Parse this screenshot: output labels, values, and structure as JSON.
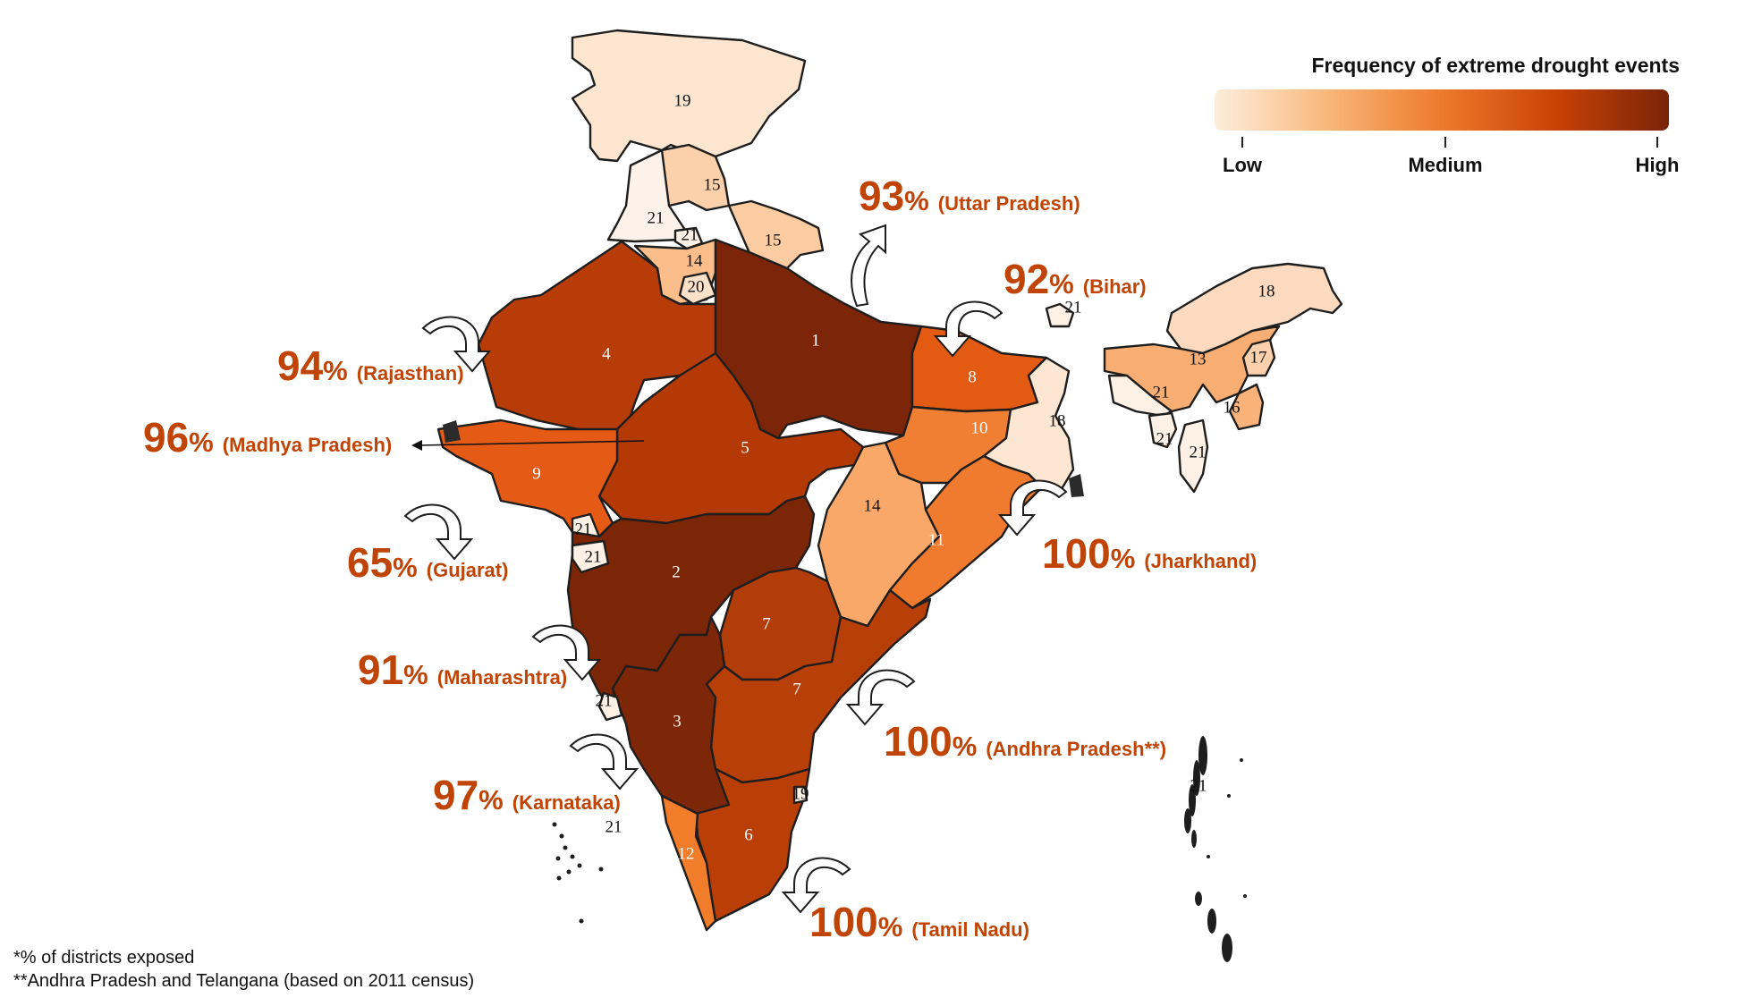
{
  "legend": {
    "title": "Frequency of extreme drought events",
    "labels": [
      "Low",
      "Medium",
      "High"
    ],
    "gradient": [
      "#fdeedd",
      "#f9b77a",
      "#ee7a2c",
      "#c94205",
      "#7a2409"
    ]
  },
  "colors": {
    "accent_text": "#bf4406",
    "rank_text_dark": "#111111",
    "rank_text_light": "#ffffff"
  },
  "regions": [
    {
      "rank": "19",
      "fill": "#fde5d0",
      "text": "dark"
    },
    {
      "rank": "15",
      "fill": "#fbd0ab",
      "text": "dark"
    },
    {
      "rank": "21",
      "fill": "#fdf2e9",
      "text": "dark"
    },
    {
      "rank": "21",
      "fill": "#fdf0e4",
      "text": "dark"
    },
    {
      "rank": "15",
      "fill": "#fbcba2",
      "text": "dark"
    },
    {
      "rank": "14",
      "fill": "#fbbd8a",
      "text": "dark"
    },
    {
      "rank": "20",
      "fill": "#fde2cb",
      "text": "dark"
    },
    {
      "rank": "4",
      "fill": "#b83c07",
      "text": "light"
    },
    {
      "rank": "1",
      "fill": "#7d2508",
      "text": "light"
    },
    {
      "rank": "5",
      "fill": "#b43905",
      "text": "light"
    },
    {
      "rank": "9",
      "fill": "#e55b16",
      "text": "light"
    },
    {
      "rank": "8",
      "fill": "#e35b13",
      "text": "light"
    },
    {
      "rank": "10",
      "fill": "#f07e33",
      "text": "light"
    },
    {
      "rank": "18",
      "fill": "#fde6d2",
      "text": "dark"
    },
    {
      "rank": "14",
      "fill": "#f9a869",
      "text": "dark"
    },
    {
      "rank": "11",
      "fill": "#f07a2e",
      "text": "light"
    },
    {
      "rank": "21",
      "fill": "#fdf1e6",
      "text": "dark"
    },
    {
      "rank": "2",
      "fill": "#7b2607",
      "text": "light"
    },
    {
      "rank": "21",
      "fill": "#fdf0e4",
      "text": "dark"
    },
    {
      "rank": "7",
      "fill": "#b33d08",
      "text": "light"
    },
    {
      "rank": "7",
      "fill": "#b83f07",
      "text": "light"
    },
    {
      "rank": "3",
      "fill": "#7e2608",
      "text": "light"
    },
    {
      "rank": "21",
      "fill": "#fdf0e4",
      "text": "dark"
    },
    {
      "rank": "6",
      "fill": "#b93f07",
      "text": "light"
    },
    {
      "rank": "12",
      "fill": "#f17d2b",
      "text": "light"
    },
    {
      "rank": "19",
      "fill": "#fdf0e4",
      "text": "dark"
    },
    {
      "rank": "21",
      "fill": "#fdf0e4",
      "text": "dark"
    },
    {
      "rank": "18",
      "fill": "#fbdac0",
      "text": "dark"
    },
    {
      "rank": "13",
      "fill": "#f8ad72",
      "text": "dark"
    },
    {
      "rank": "17",
      "fill": "#fbd0ad",
      "text": "dark"
    },
    {
      "rank": "16",
      "fill": "#f8b27a",
      "text": "dark"
    },
    {
      "rank": "21",
      "fill": "#fdf0e4",
      "text": "dark"
    },
    {
      "rank": "21",
      "fill": "#fdf0e4",
      "text": "dark"
    },
    {
      "rank": "21",
      "fill": "#fdf0e4",
      "text": "dark"
    },
    {
      "rank": "21",
      "fill": "#fdf0e4",
      "text": "dark"
    },
    {
      "rank": "21",
      "fill": "#fdf0e4",
      "text": "dark"
    }
  ],
  "callouts": [
    {
      "value": "93",
      "symbol": "%",
      "state": "(Uttar Pradesh)"
    },
    {
      "value": "92",
      "symbol": "%",
      "state": "(Bihar)"
    },
    {
      "value": "94",
      "symbol": "%",
      "state": "(Rajasthan)"
    },
    {
      "value": "96",
      "symbol": "%",
      "state": "(Madhya Pradesh)"
    },
    {
      "value": "65",
      "symbol": "%",
      "state": "(Gujarat)"
    },
    {
      "value": "100",
      "symbol": "%",
      "state": "(Jharkhand)"
    },
    {
      "value": "91",
      "symbol": "%",
      "state": "(Maharashtra)"
    },
    {
      "value": "100",
      "symbol": "%",
      "state": "(Andhra Pradesh**)"
    },
    {
      "value": "97",
      "symbol": "%",
      "state": "(Karnataka)"
    },
    {
      "value": "100",
      "symbol": "%",
      "state": "(Tamil Nadu)"
    }
  ],
  "footnotes": [
    "*% of districts exposed",
    "**Andhra Pradesh and Telangana (based on 2011 census)"
  ]
}
